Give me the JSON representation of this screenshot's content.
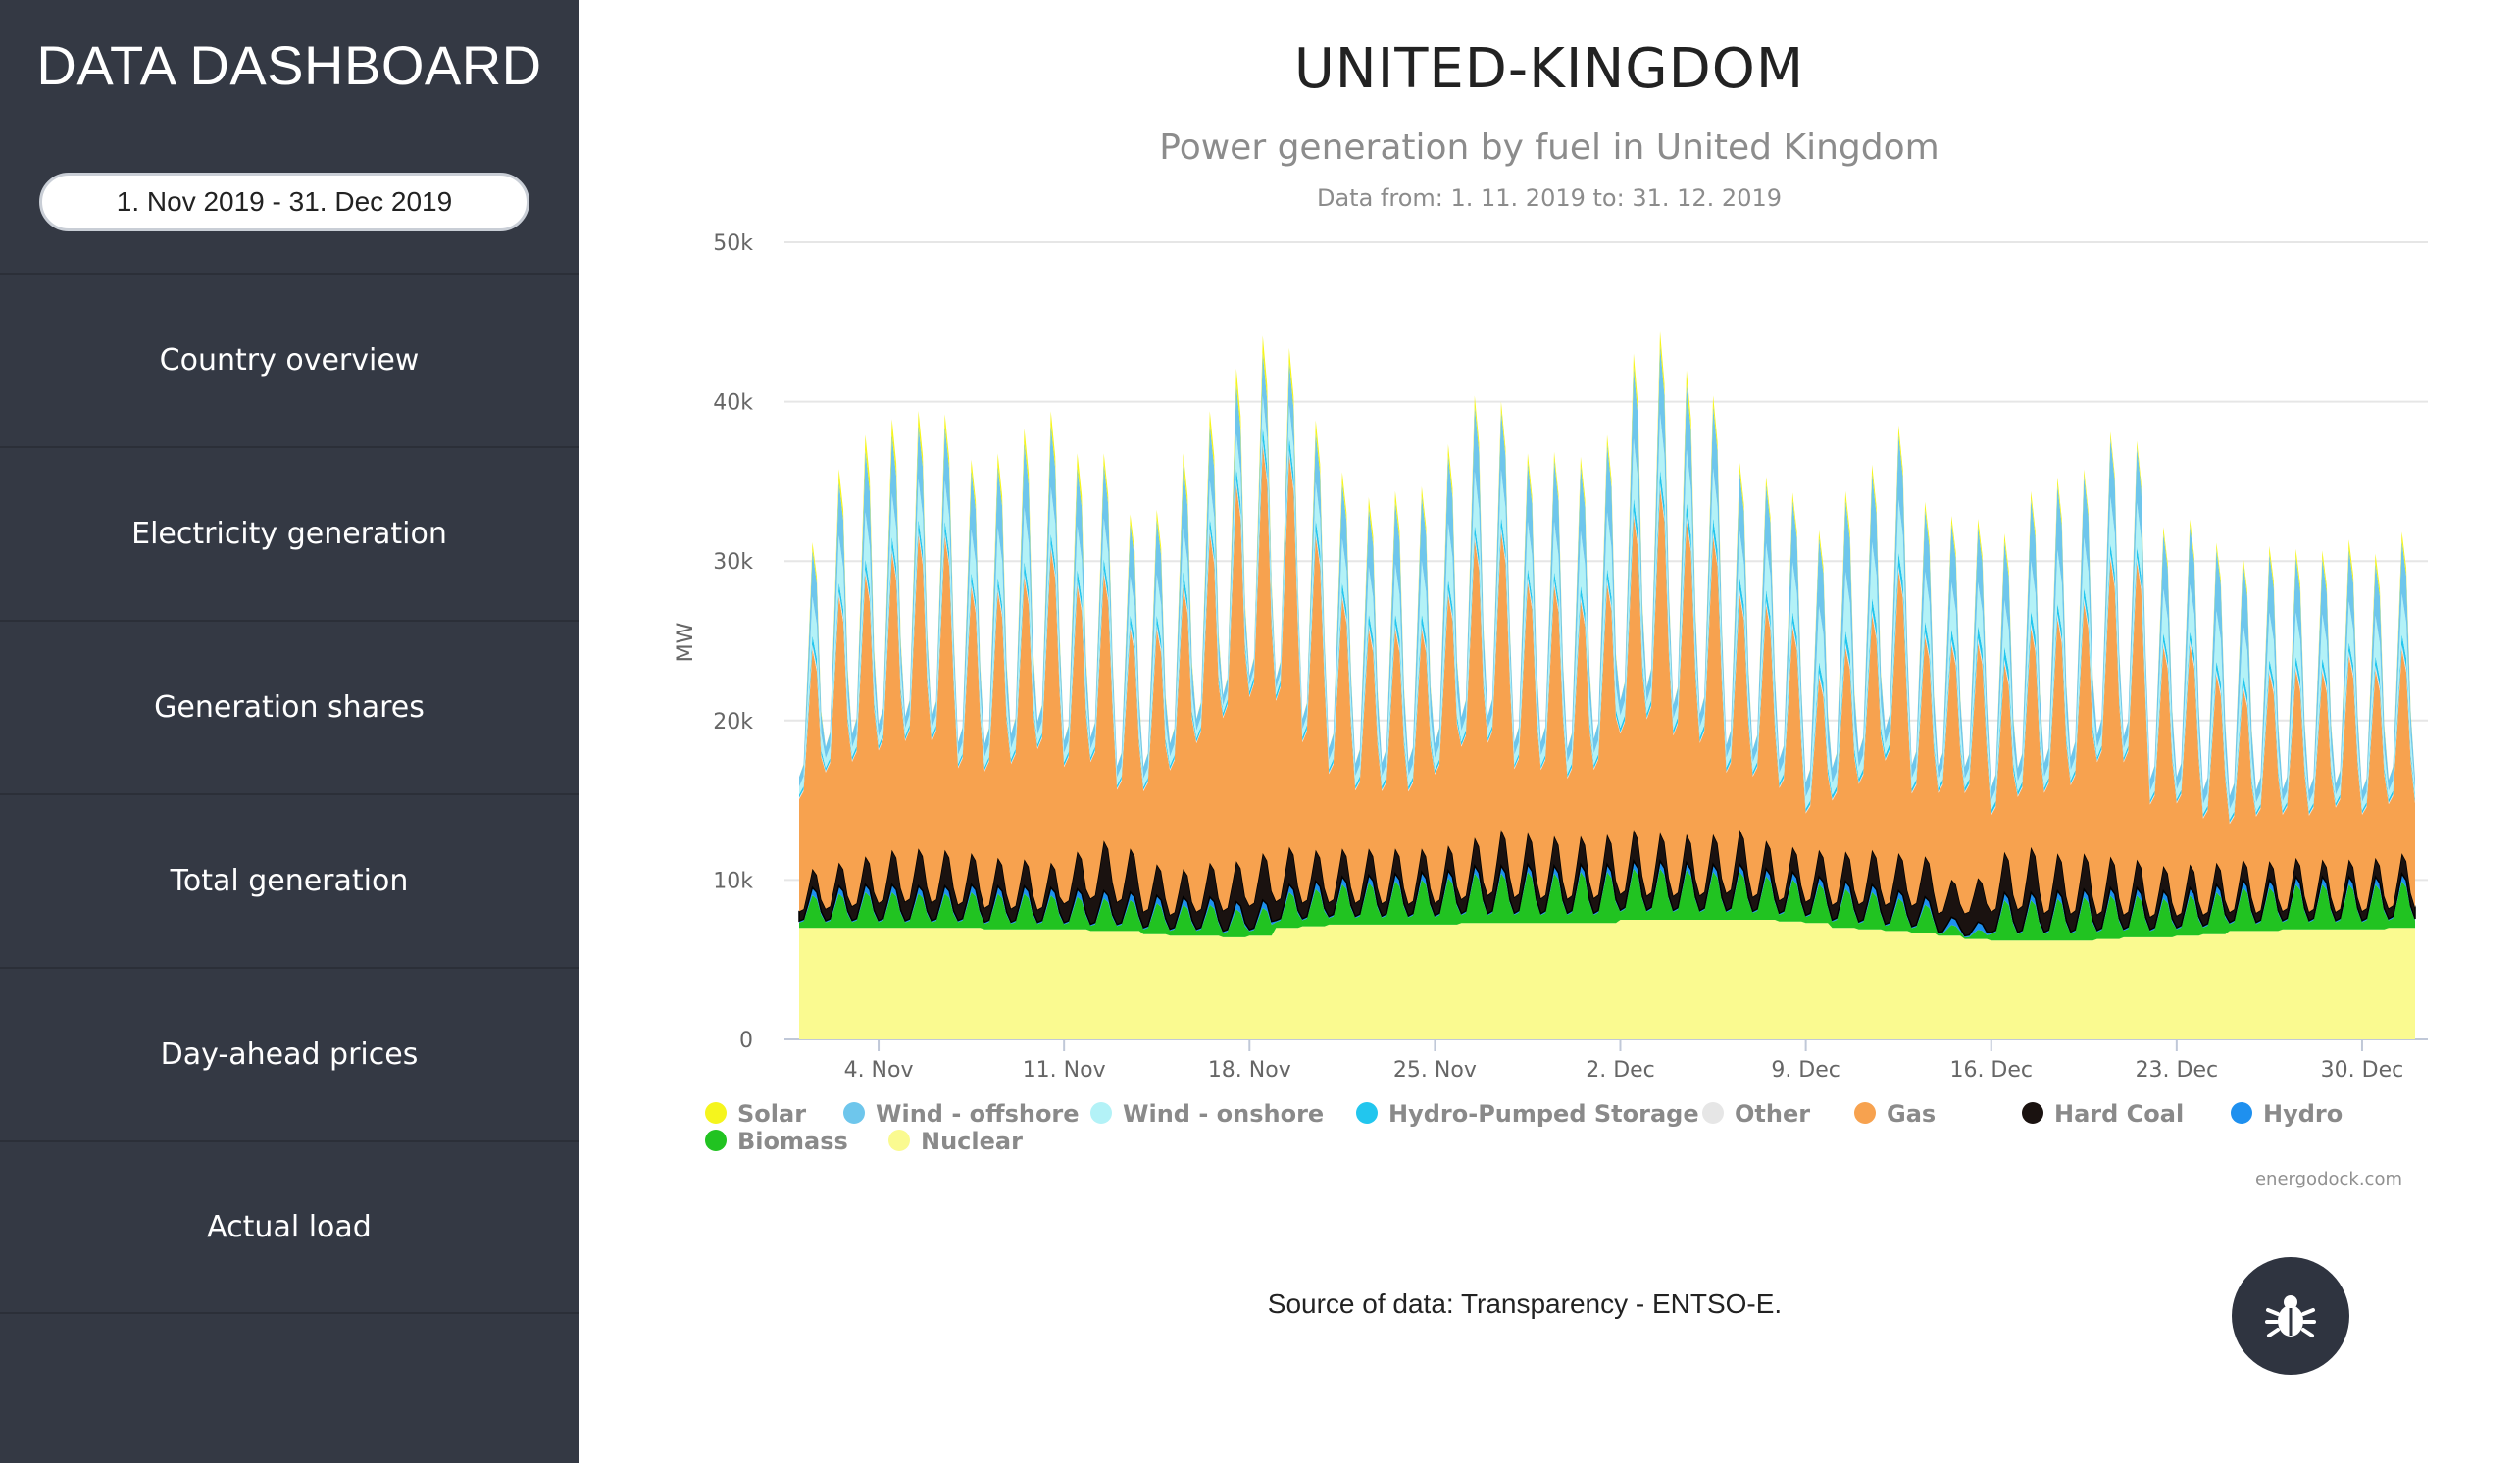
{
  "sidebar": {
    "brand": "DATA DASHBOARD",
    "date_range": "1. Nov 2019 - 31. Dec 2019",
    "items": [
      {
        "label": "Country overview"
      },
      {
        "label": "Electricity generation"
      },
      {
        "label": "Generation shares"
      },
      {
        "label": "Total generation"
      },
      {
        "label": "Day-ahead prices"
      },
      {
        "label": "Actual load"
      }
    ]
  },
  "page": {
    "title": "UNITED-KINGDOM",
    "source": "Source of data: Transparency - ENTSO-E."
  },
  "debug_button": {
    "icon": "bug-icon"
  },
  "chart_data": {
    "type": "area",
    "stacked": true,
    "title": "Power generation by fuel in United Kingdom",
    "subtitle": "Data from: 1. 11. 2019 to: 31. 12. 2019",
    "ylabel": "MW",
    "ylim": [
      0,
      50000
    ],
    "y_ticks": [
      {
        "v": 0,
        "label": "0"
      },
      {
        "v": 10000,
        "label": "10k"
      },
      {
        "v": 20000,
        "label": "20k"
      },
      {
        "v": 30000,
        "label": "30k"
      },
      {
        "v": 40000,
        "label": "40k"
      },
      {
        "v": 50000,
        "label": "50k"
      }
    ],
    "xlim": [
      1,
      62
    ],
    "x_ticks": [
      {
        "day": 4,
        "label": "4. Nov"
      },
      {
        "day": 11,
        "label": "11. Nov"
      },
      {
        "day": 18,
        "label": "18. Nov"
      },
      {
        "day": 25,
        "label": "25. Nov"
      },
      {
        "day": 32,
        "label": "2. Dec"
      },
      {
        "day": 39,
        "label": "9. Dec"
      },
      {
        "day": 46,
        "label": "16. Dec"
      },
      {
        "day": 53,
        "label": "23. Dec"
      },
      {
        "day": 60,
        "label": "30. Dec"
      }
    ],
    "credit": "energodock.com",
    "legend": [
      {
        "name": "Solar",
        "color": "#f5f51d"
      },
      {
        "name": "Wind - offshore",
        "color": "#6ec6ec"
      },
      {
        "name": "Wind - onshore",
        "color": "#b3f2f7"
      },
      {
        "name": "Hydro-Pumped Storage",
        "color": "#22c6ee"
      },
      {
        "name": "Other",
        "color": "#e6e6e6"
      },
      {
        "name": "Gas",
        "color": "#f7a24f"
      },
      {
        "name": "Hard Coal",
        "color": "#1a1210"
      },
      {
        "name": "Hydro",
        "color": "#1e90ef"
      },
      {
        "name": "Biomass",
        "color": "#21c321"
      },
      {
        "name": "Nuclear",
        "color": "#fafa90"
      }
    ],
    "series_daily_peak_mw": {
      "days": [
        1,
        2,
        3,
        4,
        5,
        6,
        7,
        8,
        9,
        10,
        11,
        12,
        13,
        14,
        15,
        16,
        17,
        18,
        19,
        20,
        21,
        22,
        23,
        24,
        25,
        26,
        27,
        28,
        29,
        30,
        31,
        32,
        33,
        34,
        35,
        36,
        37,
        38,
        39,
        40,
        41,
        42,
        43,
        44,
        45,
        46,
        47,
        48,
        49,
        50,
        51,
        52,
        53,
        54,
        55,
        56,
        57,
        58,
        59,
        60,
        61,
        62
      ],
      "Nuclear": [
        7000,
        7000,
        7000,
        7000,
        7000,
        7000,
        7000,
        6900,
        6900,
        6900,
        6900,
        6800,
        6800,
        6600,
        6500,
        6500,
        6400,
        6500,
        7000,
        7100,
        7200,
        7200,
        7200,
        7200,
        7200,
        7300,
        7300,
        7300,
        7300,
        7300,
        7300,
        7500,
        7500,
        7500,
        7500,
        7500,
        7500,
        7400,
        7300,
        7000,
        6900,
        6800,
        6700,
        6500,
        6300,
        6200,
        6200,
        6200,
        6200,
        6300,
        6400,
        6400,
        6500,
        6600,
        6800,
        6800,
        6900,
        6900,
        6900,
        6900,
        7000,
        7000
      ],
      "Biomass": [
        2100,
        2200,
        2300,
        2300,
        2200,
        2200,
        2300,
        2300,
        2300,
        2200,
        2100,
        2100,
        2000,
        2000,
        2000,
        2000,
        1800,
        1800,
        2300,
        2400,
        2600,
        2700,
        2800,
        2900,
        3000,
        3200,
        3200,
        3300,
        3200,
        3300,
        3300,
        3300,
        3300,
        3200,
        3100,
        3100,
        2800,
        2700,
        2500,
        2500,
        2400,
        2100,
        1800,
        700,
        600,
        2600,
        2600,
        2700,
        2800,
        2800,
        2700,
        2500,
        2600,
        2700,
        2800,
        2800,
        2900,
        2900,
        2900,
        2900,
        3000,
        3000
      ],
      "Hydro": [
        500,
        500,
        500,
        500,
        500,
        500,
        500,
        500,
        500,
        500,
        500,
        500,
        500,
        500,
        500,
        500,
        500,
        500,
        500,
        500,
        500,
        500,
        500,
        500,
        500,
        500,
        500,
        500,
        500,
        500,
        500,
        500,
        500,
        500,
        500,
        500,
        500,
        500,
        500,
        500,
        500,
        500,
        500,
        500,
        500,
        500,
        500,
        500,
        500,
        500,
        500,
        500,
        500,
        500,
        500,
        500,
        500,
        500,
        500,
        500,
        500,
        500
      ],
      "Hard Coal": [
        1200,
        1500,
        1800,
        2200,
        2400,
        2300,
        2000,
        1800,
        1700,
        1600,
        2400,
        3200,
        2800,
        2000,
        1800,
        2200,
        2600,
        3000,
        2400,
        2000,
        1800,
        1700,
        1600,
        1500,
        1600,
        1800,
        2300,
        2000,
        1900,
        1800,
        1900,
        2000,
        1800,
        1800,
        1900,
        2200,
        1800,
        1600,
        1700,
        1900,
        2200,
        2400,
        2600,
        2400,
        2800,
        2600,
        2900,
        2400,
        2300,
        2000,
        1800,
        1600,
        1500,
        1400,
        1300,
        1200,
        1200,
        1100,
        1100,
        1200,
        1300,
        1400
      ],
      "Gas": [
        14000,
        17000,
        18000,
        19000,
        20000,
        20000,
        17000,
        17000,
        18000,
        20000,
        17000,
        17000,
        14000,
        15000,
        18000,
        21000,
        24000,
        26000,
        25000,
        20000,
        16000,
        14000,
        14000,
        14000,
        16000,
        19000,
        19000,
        16000,
        16000,
        15000,
        16000,
        20000,
        22000,
        20000,
        19000,
        15000,
        15000,
        14000,
        11000,
        13000,
        15000,
        18000,
        14000,
        15000,
        15000,
        12000,
        14000,
        15000,
        16000,
        19000,
        19000,
        14000,
        14000,
        12000,
        11000,
        12000,
        12000,
        12000,
        13000,
        12000,
        13000,
        13000
      ],
      "Other": [
        300,
        300,
        300,
        300,
        300,
        300,
        300,
        300,
        300,
        300,
        300,
        300,
        300,
        300,
        300,
        300,
        300,
        300,
        300,
        300,
        300,
        300,
        300,
        300,
        300,
        300,
        300,
        300,
        300,
        300,
        300,
        300,
        300,
        300,
        300,
        300,
        300,
        300,
        300,
        300,
        300,
        300,
        300,
        300,
        300,
        300,
        300,
        300,
        300,
        300,
        300,
        300,
        300,
        300,
        300,
        300,
        300,
        300,
        300,
        300,
        300,
        300
      ],
      "Hydro-Pumped Storage": [
        600,
        600,
        700,
        700,
        700,
        700,
        600,
        600,
        700,
        700,
        700,
        700,
        600,
        600,
        700,
        700,
        800,
        900,
        900,
        800,
        700,
        700,
        700,
        700,
        700,
        700,
        700,
        600,
        600,
        700,
        700,
        900,
        900,
        900,
        900,
        800,
        700,
        700,
        700,
        800,
        800,
        900,
        700,
        700,
        800,
        800,
        800,
        700,
        700,
        700,
        700,
        600,
        600,
        600,
        600,
        600,
        600,
        600,
        600,
        600,
        700,
        700
      ],
      "Wind - onshore": [
        2500,
        3000,
        3000,
        2800,
        2600,
        2600,
        2800,
        3200,
        3500,
        3000,
        2800,
        2600,
        2500,
        2600,
        2800,
        2400,
        2200,
        2000,
        2000,
        2400,
        2800,
        3000,
        3200,
        3400,
        3600,
        3400,
        3000,
        3000,
        3200,
        3500,
        3600,
        3800,
        3600,
        3400,
        3200,
        3000,
        3000,
        3200,
        3600,
        3800,
        3600,
        3400,
        3200,
        3000,
        2800,
        3000,
        3200,
        3400,
        3200,
        3000,
        2800,
        2800,
        3000,
        3200,
        3200,
        3000,
        2800,
        2800,
        2600,
        2600,
        2600,
        2600
      ],
      "Wind - offshore": [
        3000,
        3500,
        4000,
        3800,
        3500,
        3500,
        3800,
        4000,
        4200,
        4000,
        3800,
        3500,
        3400,
        3600,
        4000,
        3600,
        3200,
        2800,
        2800,
        3200,
        3600,
        3800,
        4000,
        4200,
        4400,
        4200,
        3800,
        3800,
        4000,
        4200,
        4400,
        4600,
        4400,
        4200,
        4000,
        3800,
        3800,
        4000,
        4400,
        4600,
        4400,
        4200,
        4000,
        3800,
        3600,
        3800,
        4000,
        4200,
        4000,
        3800,
        3600,
        3600,
        3800,
        4000,
        4000,
        3800,
        3600,
        3600,
        3400,
        3400,
        3400,
        3400
      ],
      "Solar": [
        500,
        800,
        1000,
        1000,
        900,
        800,
        700,
        800,
        900,
        900,
        900,
        700,
        600,
        600,
        800,
        900,
        1000,
        1100,
        900,
        800,
        700,
        700,
        700,
        600,
        700,
        700,
        600,
        600,
        500,
        600,
        600,
        900,
        900,
        900,
        700,
        600,
        500,
        500,
        500,
        600,
        600,
        600,
        500,
        500,
        500,
        500,
        500,
        500,
        400,
        400,
        400,
        400,
        400,
        400,
        400,
        500,
        500,
        500,
        600,
        600,
        600,
        600
      ]
    }
  }
}
